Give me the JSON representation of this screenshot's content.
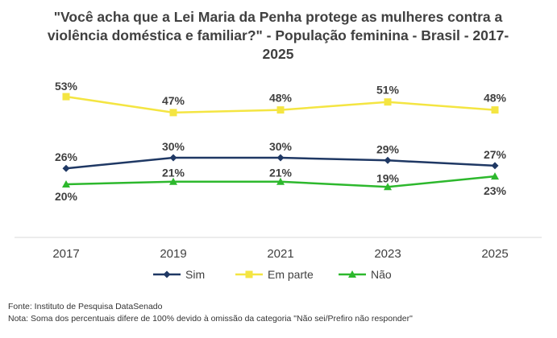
{
  "chart_data": {
    "type": "line",
    "title": "\"Você acha que a Lei Maria da Penha protege as mulheres contra a violência doméstica e familiar?\" - População feminina - Brasil - 2017-2025",
    "title_lines": [
      "\"Você acha que a Lei Maria da Penha protege as mulheres contra a",
      "violência doméstica e familiar?\" - População feminina - Brasil - 2017-",
      "2025"
    ],
    "categories": [
      "2017",
      "2019",
      "2021",
      "2023",
      "2025"
    ],
    "series": [
      {
        "name": "Sim",
        "values": [
          26,
          30,
          30,
          29,
          27
        ],
        "color": "#1f3864",
        "marker": "diamond",
        "labels": [
          "26%",
          "30%",
          "30%",
          "29%",
          "27%"
        ]
      },
      {
        "name": "Em parte",
        "values": [
          53,
          47,
          48,
          51,
          48
        ],
        "color": "#f4e542",
        "marker": "square",
        "labels": [
          "53%",
          "47%",
          "48%",
          "51%",
          "48%"
        ]
      },
      {
        "name": "Não",
        "values": [
          20,
          21,
          21,
          19,
          23
        ],
        "color": "#2db82d",
        "marker": "triangle",
        "labels": [
          "20%",
          "21%",
          "21%",
          "19%",
          "23%"
        ]
      }
    ],
    "xlabel": "",
    "ylabel": "",
    "y_axis_visible": false,
    "grid": false,
    "legend_position": "bottom"
  },
  "footer": {
    "source": "Fonte: Instituto de Pesquisa DataSenado",
    "note": "Nota: Soma dos percentuais difere de 100% devido à omissão da categoria \"Não sei/Prefiro não responder\""
  }
}
